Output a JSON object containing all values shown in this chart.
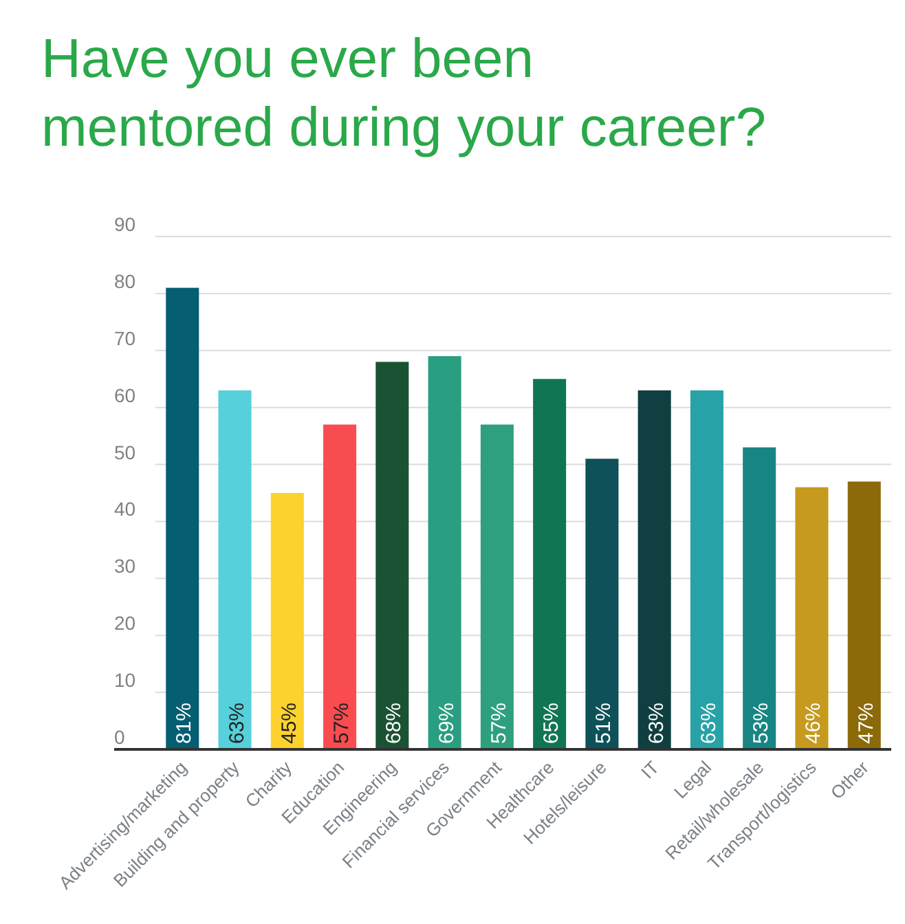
{
  "chart_data": {
    "type": "bar",
    "title": "Have you ever been mentored during your career?",
    "categories": [
      "Advertising/marketing",
      "Building and property",
      "Charity",
      "Education",
      "Engineering",
      "Financial services",
      "Government",
      "Healthcare",
      "Hotels/leisure",
      "IT",
      "Legal",
      "Retail/wholesale",
      "Transport/logistics",
      "Other"
    ],
    "values": [
      81,
      63,
      45,
      57,
      68,
      69,
      57,
      65,
      51,
      63,
      63,
      53,
      46,
      47
    ],
    "value_labels": [
      "81%",
      "63%",
      "45%",
      "57%",
      "68%",
      "69%",
      "57%",
      "65%",
      "51%",
      "63%",
      "63%",
      "53%",
      "46%",
      "47%"
    ],
    "colors": [
      "#065e72",
      "#56d0da",
      "#fdd22e",
      "#f94c50",
      "#1b5233",
      "#2a9e80",
      "#2ea080",
      "#107553",
      "#0e5158",
      "#103f42",
      "#27a2a6",
      "#178584",
      "#c59a1e",
      "#8c6a0a"
    ],
    "ylim": [
      0,
      90
    ],
    "yticks": [
      0,
      10,
      20,
      30,
      40,
      50,
      60,
      70,
      80,
      90
    ],
    "grid": "y"
  }
}
